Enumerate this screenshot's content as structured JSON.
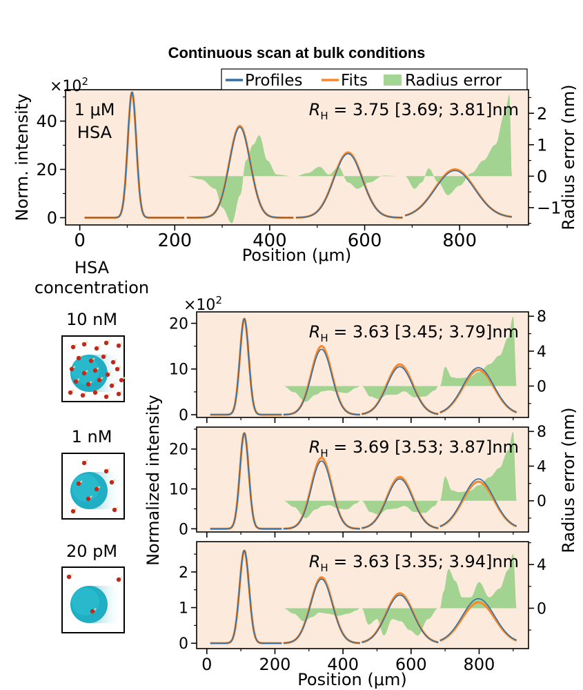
{
  "figure": {
    "title": "Continuous scan at bulk conditions",
    "legend": {
      "profiles": "Profiles",
      "fits": "Fits",
      "radius_error": "Radius error"
    },
    "colors": {
      "background": "#fcebdc",
      "profile": "#2e6fa8",
      "fit": "#f8882a",
      "error": "#93cf82"
    },
    "side_panel": {
      "header_line1": "HSA",
      "header_line2": "concentration",
      "labels": [
        "10 nM",
        "1 nM",
        "20 pM"
      ]
    },
    "shared_xlabel": "Position (μm)",
    "shared_ylabel": "Normalized intensity",
    "shared_ylabel2": "Radius error (nm)"
  },
  "chart_data": [
    {
      "type": "line",
      "panel": "top",
      "annotation_lines": [
        "1 μM",
        "HSA"
      ],
      "rh_label": "R",
      "rh_sub": "H",
      "rh_value": " = 3.75 [3.69; 3.81]nm",
      "xlabel": "Position (μm)",
      "ylabel": "Norm. intensity",
      "ylabel2": "Radius error (nm)",
      "y_multiplier_base": "×10",
      "y_multiplier_exp": "2",
      "xlim": [
        -30,
        945
      ],
      "ylim": [
        -3,
        53
      ],
      "y2lim": [
        -1.55,
        2.75
      ],
      "xticks": [
        0,
        200,
        400,
        600,
        800
      ],
      "xtick_labels": [
        "0",
        "200",
        "400",
        "600",
        "800"
      ],
      "yticks": [
        0,
        20,
        40
      ],
      "ytick_labels": [
        "0",
        "20",
        "40"
      ],
      "y2ticks": [
        -1,
        0,
        1,
        2
      ],
      "y2tick_labels": [
        "−1",
        "0",
        "1",
        "2"
      ],
      "peaks": [
        {
          "center": 110,
          "sigma": 9,
          "profile_amp": 52,
          "fit_amp": 52
        },
        {
          "center": 337,
          "sigma": 22,
          "profile_amp": 37.5,
          "fit_amp": 38
        },
        {
          "center": 565,
          "sigma": 30,
          "profile_amp": 26.5,
          "fit_amp": 27
        },
        {
          "center": 790,
          "sigma": 42,
          "profile_amp": 19.5,
          "fit_amp": 20
        }
      ],
      "error_segments": [
        {
          "x": [
            225,
            255,
            285,
            300,
            320,
            338,
            350,
            365,
            378,
            395,
            415,
            450
          ],
          "y": [
            0,
            -0.1,
            -0.4,
            -1.0,
            -1.5,
            -0.6,
            0.5,
            1.0,
            1.3,
            0.5,
            0.05,
            0
          ]
        },
        {
          "x": [
            455,
            480,
            505,
            525,
            545,
            565,
            585,
            610,
            640,
            680
          ],
          "y": [
            0,
            0.1,
            0.3,
            0.05,
            0.3,
            -0.2,
            -0.4,
            -0.2,
            0.02,
            0
          ]
        },
        {
          "x": [
            685,
            705,
            720,
            735,
            755,
            775,
            800,
            825,
            850,
            875,
            895,
            905,
            910
          ],
          "y": [
            0,
            -0.4,
            -0.2,
            0.25,
            -0.2,
            -0.6,
            -0.3,
            0.1,
            0.5,
            1.0,
            2.0,
            2.6,
            0
          ]
        }
      ]
    },
    {
      "type": "line",
      "panel": "10 nM",
      "rh_label": "R",
      "rh_sub": "H",
      "rh_value": " = 3.63 [3.45; 3.79]nm",
      "y_multiplier_base": "×10",
      "y_multiplier_exp": "2",
      "xlim": [
        -30,
        945
      ],
      "ylim": [
        -0.6,
        22.5
      ],
      "y2lim": [
        -3.6,
        8.5
      ],
      "yticks": [
        0,
        10,
        20
      ],
      "ytick_labels": [
        "0",
        "10",
        "20"
      ],
      "y2ticks": [
        0,
        4,
        8
      ],
      "y2tick_labels": [
        "0",
        "4",
        "8"
      ],
      "peaks": [
        {
          "center": 110,
          "sigma": 13,
          "profile_amp": 21,
          "fit_amp": 21
        },
        {
          "center": 337,
          "sigma": 30,
          "profile_amp": 14.3,
          "fit_amp": 15
        },
        {
          "center": 567,
          "sigma": 38,
          "profile_amp": 10.5,
          "fit_amp": 11
        },
        {
          "center": 798,
          "sigma": 46,
          "profile_amp": 10.3,
          "fit_amp": 9.8
        }
      ],
      "error_segments": [
        {
          "x": [
            225,
            255,
            290,
            320,
            340,
            360,
            385,
            410,
            440,
            450
          ],
          "y": [
            0,
            -0.7,
            -1.8,
            -1.0,
            -0.6,
            -0.5,
            -0.7,
            -0.8,
            -0.2,
            0
          ]
        },
        {
          "x": [
            455,
            480,
            505,
            530,
            555,
            580,
            610,
            640,
            670,
            680
          ],
          "y": [
            0,
            -1.2,
            -1.5,
            -1.0,
            -1.0,
            -0.6,
            -1.3,
            -1.2,
            -0.5,
            0
          ]
        },
        {
          "x": [
            685,
            700,
            720,
            740,
            770,
            800,
            830,
            860,
            885,
            900,
            910
          ],
          "y": [
            0,
            2.2,
            1.0,
            0.9,
            1.0,
            1.6,
            2.5,
            3.5,
            5.5,
            8.0,
            0
          ]
        }
      ]
    },
    {
      "type": "line",
      "panel": "1 nM",
      "rh_label": "R",
      "rh_sub": "H",
      "rh_value": " = 3.69 [3.53; 3.87]nm",
      "xlim": [
        -30,
        945
      ],
      "ylim": [
        -0.8,
        25.5
      ],
      "y2lim": [
        -3.6,
        8.5
      ],
      "yticks": [
        0,
        10,
        20
      ],
      "ytick_labels": [
        "0",
        "10",
        "20"
      ],
      "y2ticks": [
        0,
        4,
        8
      ],
      "y2tick_labels": [
        "0",
        "4",
        "8"
      ],
      "peaks": [
        {
          "center": 110,
          "sigma": 13,
          "profile_amp": 24,
          "fit_amp": 24
        },
        {
          "center": 337,
          "sigma": 30,
          "profile_amp": 17,
          "fit_amp": 17.8
        },
        {
          "center": 567,
          "sigma": 38,
          "profile_amp": 12.5,
          "fit_amp": 13
        },
        {
          "center": 798,
          "sigma": 46,
          "profile_amp": 12.5,
          "fit_amp": 11.8
        }
      ],
      "error_segments": [
        {
          "x": [
            225,
            255,
            290,
            320,
            340,
            360,
            385,
            410,
            440,
            450
          ],
          "y": [
            0,
            -0.7,
            -2.0,
            -1.0,
            -0.6,
            -0.5,
            -0.9,
            -1.0,
            -0.3,
            0
          ]
        },
        {
          "x": [
            455,
            480,
            505,
            530,
            555,
            580,
            610,
            640,
            670,
            680
          ],
          "y": [
            0,
            -1.3,
            -1.6,
            -1.0,
            -0.9,
            -0.6,
            -1.3,
            -1.4,
            -0.6,
            0
          ]
        },
        {
          "x": [
            685,
            700,
            720,
            740,
            770,
            800,
            830,
            860,
            885,
            900,
            910
          ],
          "y": [
            0,
            2.8,
            1.2,
            1.0,
            1.1,
            1.8,
            2.7,
            3.8,
            5.8,
            8.0,
            0
          ]
        }
      ]
    },
    {
      "type": "line",
      "panel": "20 pM",
      "rh_label": "R",
      "rh_sub": "H",
      "rh_value": " = 3.63 [3.35; 3.94]nm",
      "xlabel": "Position (μm)",
      "xlim": [
        -30,
        945
      ],
      "ylim": [
        -0.15,
        2.85
      ],
      "y2lim": [
        -3.7,
        6.1
      ],
      "xticks": [
        0,
        200,
        400,
        600,
        800
      ],
      "xtick_labels": [
        "0",
        "200",
        "400",
        "600",
        "800"
      ],
      "yticks": [
        0,
        1,
        2
      ],
      "ytick_labels": [
        "0",
        "1",
        "2"
      ],
      "y2ticks": [
        0,
        4
      ],
      "y2tick_labels": [
        "0",
        "4"
      ],
      "peaks": [
        {
          "center": 110,
          "sigma": 14,
          "profile_amp": 2.6,
          "fit_amp": 2.6
        },
        {
          "center": 337,
          "sigma": 32,
          "profile_amp": 1.8,
          "fit_amp": 1.85
        },
        {
          "center": 567,
          "sigma": 40,
          "profile_amp": 1.35,
          "fit_amp": 1.4
        },
        {
          "center": 798,
          "sigma": 48,
          "profile_amp": 1.25,
          "fit_amp": 1.15
        }
      ],
      "error_segments": [
        {
          "x": [
            225,
            255,
            285,
            310,
            330,
            355,
            385,
            415,
            440,
            450
          ],
          "y": [
            0,
            -0.5,
            -1.2,
            -0.8,
            -0.4,
            -0.5,
            -0.7,
            -0.5,
            -0.2,
            0
          ]
        },
        {
          "x": [
            455,
            475,
            500,
            520,
            545,
            570,
            595,
            620,
            650,
            680
          ],
          "y": [
            0,
            -1.5,
            -1.0,
            -2.5,
            -1.0,
            -1.2,
            -2.0,
            -2.5,
            -1.0,
            0
          ]
        },
        {
          "x": [
            685,
            695,
            710,
            730,
            750,
            775,
            800,
            830,
            860,
            885,
            900,
            910
          ],
          "y": [
            0,
            1.5,
            3.6,
            2.5,
            1.0,
            1.0,
            2.4,
            1.0,
            1.8,
            3.5,
            5.0,
            0
          ]
        }
      ]
    }
  ]
}
